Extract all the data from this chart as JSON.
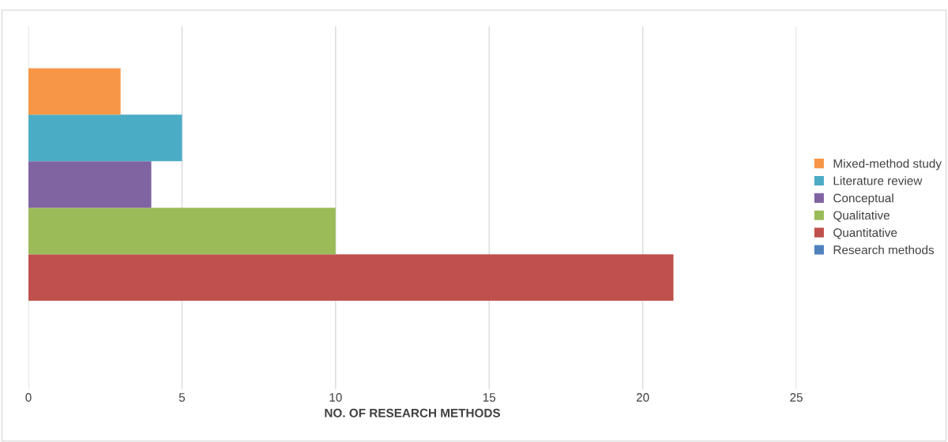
{
  "chart_data": {
    "type": "bar",
    "orientation": "horizontal",
    "categories": [
      null
    ],
    "series": [
      {
        "name": "Research methods",
        "color": "#4f81bd",
        "values": [
          null
        ]
      },
      {
        "name": "Quantitative",
        "color": "#c0504d",
        "values": [
          21
        ]
      },
      {
        "name": "Qualitative",
        "color": "#9bbb59",
        "values": [
          10
        ]
      },
      {
        "name": "Conceptual",
        "color": "#8064a2",
        "values": [
          4
        ]
      },
      {
        "name": "Literature review",
        "color": "#4bacc6",
        "values": [
          5
        ]
      },
      {
        "name": "Mixed-method study",
        "color": "#f79646",
        "values": [
          3
        ]
      }
    ],
    "xlabel": "NO. OF RESEARCH METHODS",
    "xlim": [
      0,
      25
    ],
    "xticks": [
      0,
      5,
      10,
      15,
      20,
      25
    ],
    "grid": "x",
    "legend": "right",
    "tick_labels": "x"
  }
}
